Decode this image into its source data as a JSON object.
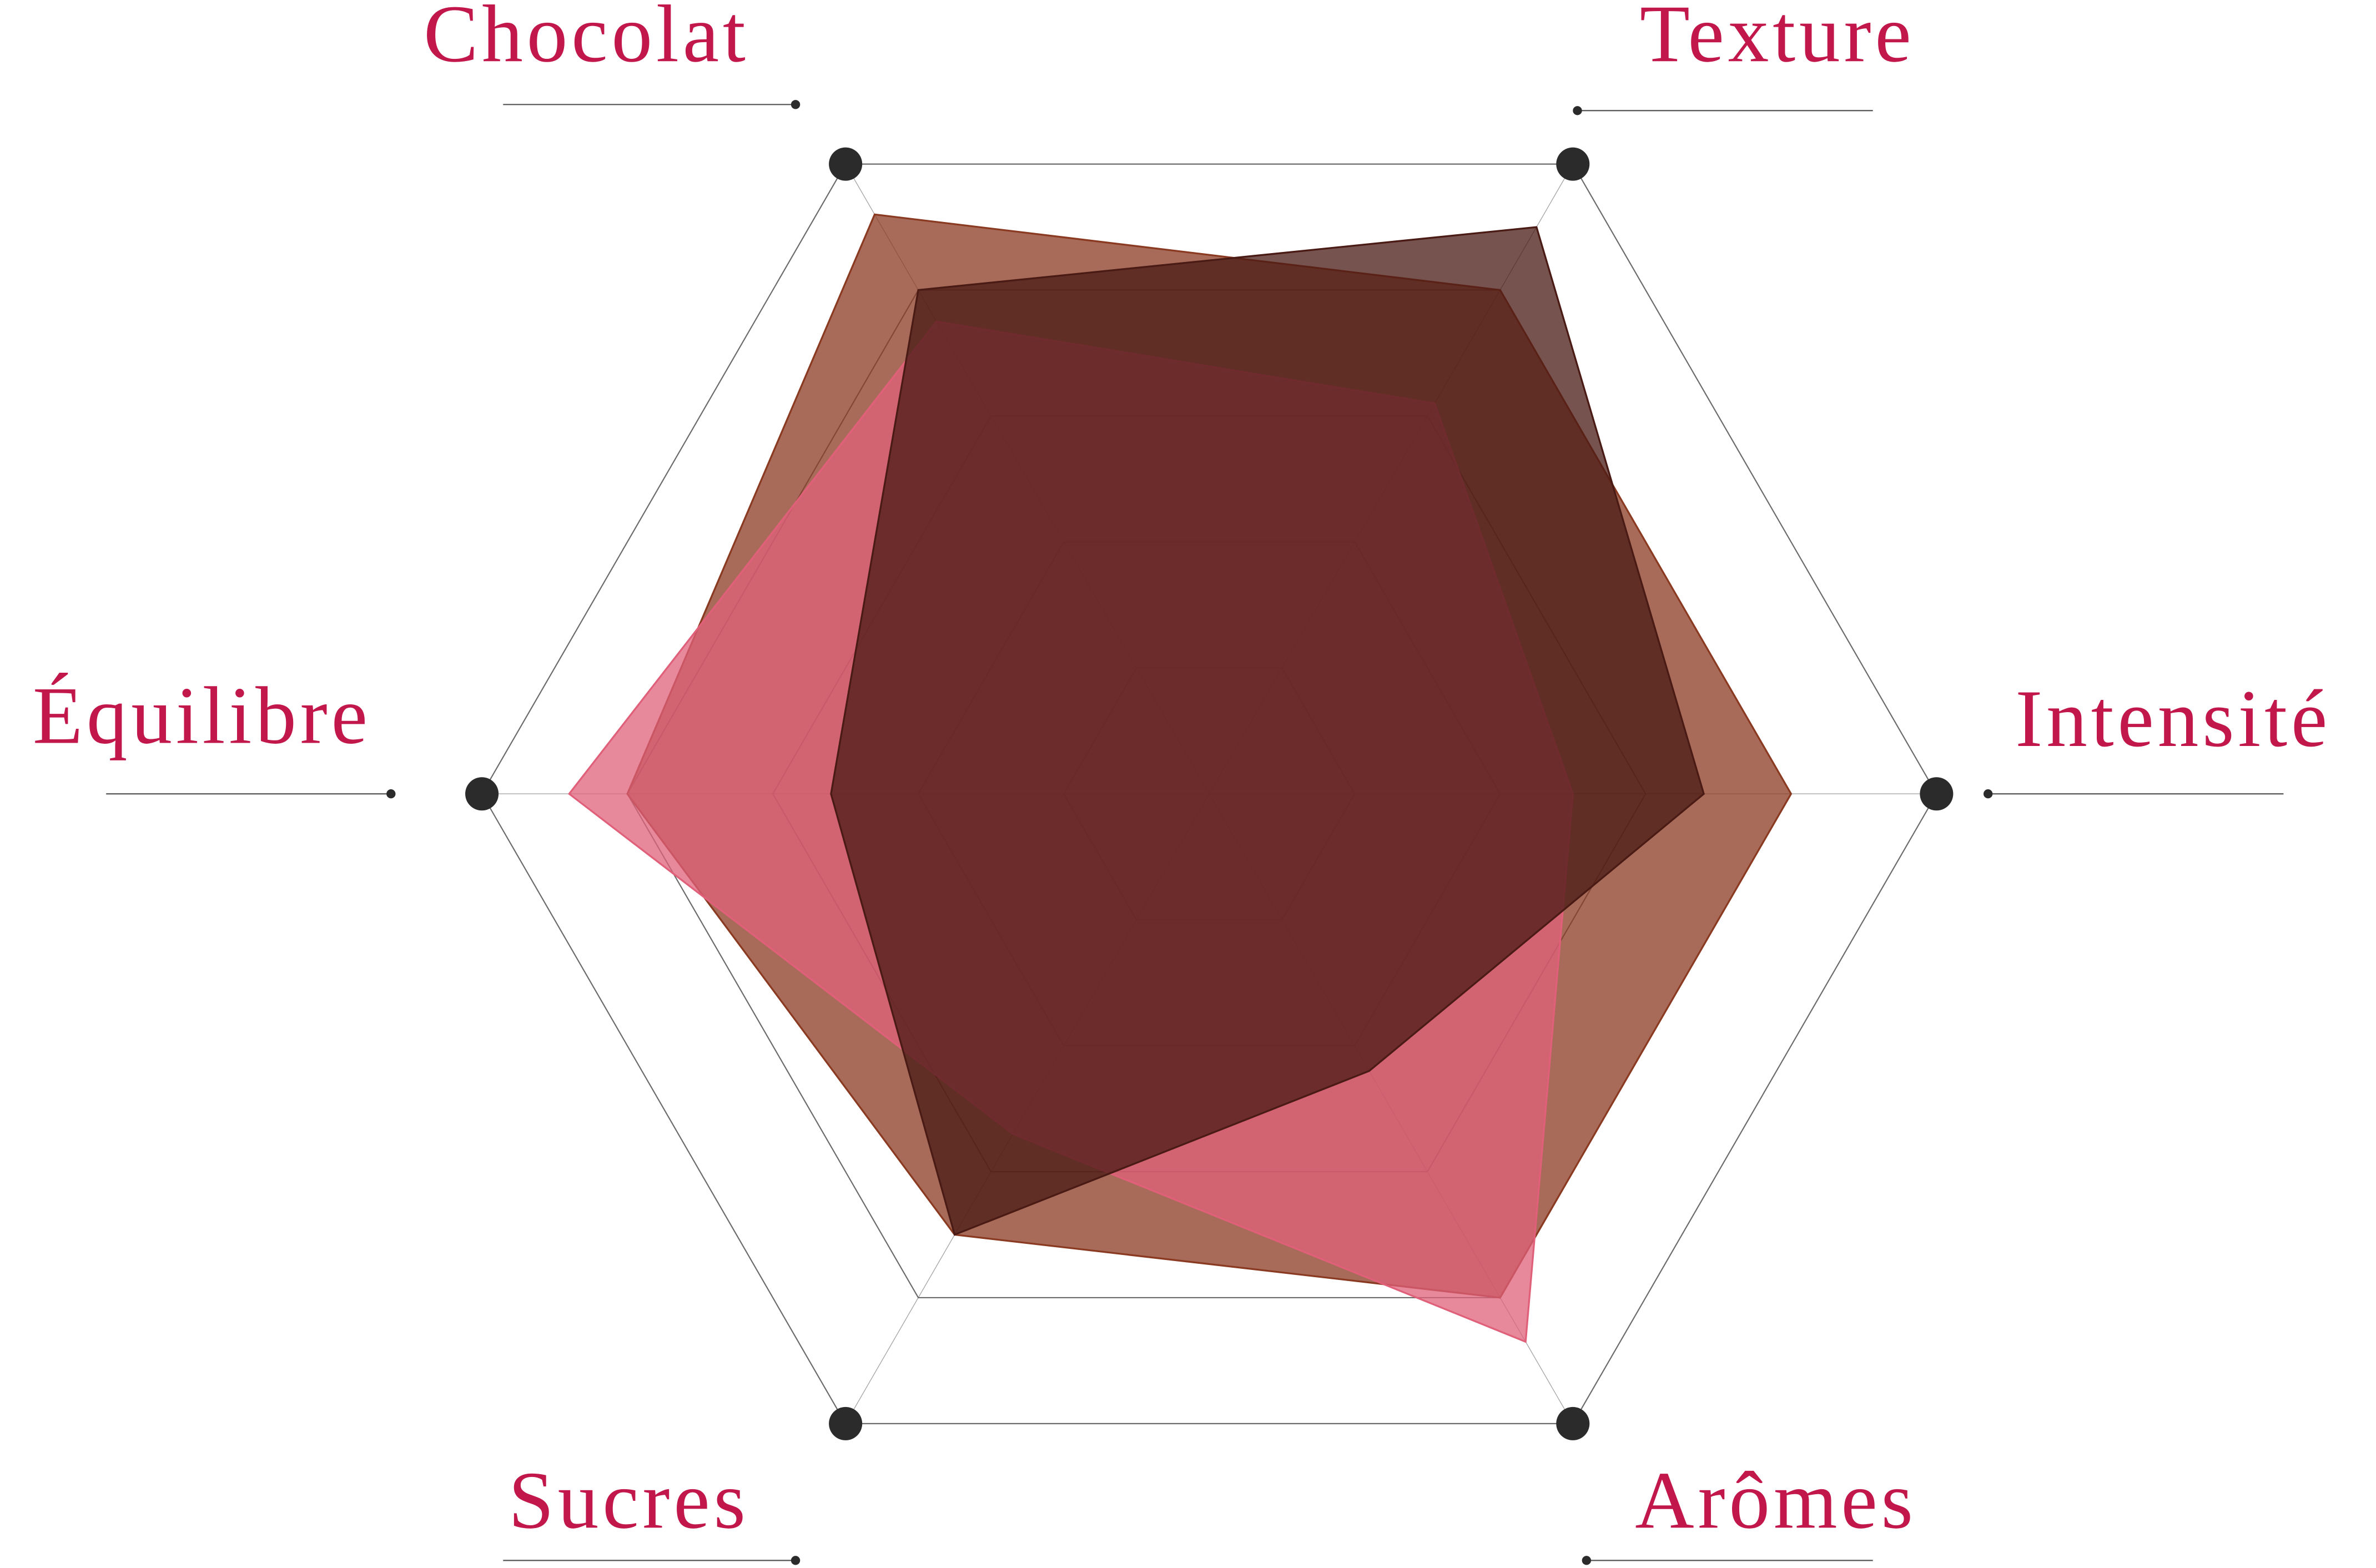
{
  "chart_data": {
    "type": "radar",
    "categories": [
      "Chocolat",
      "Texture",
      "Intensité",
      "Arômes",
      "Sucres",
      "Équilibre"
    ],
    "rlim": [
      0,
      5
    ],
    "rticks": [
      1,
      2,
      3,
      4,
      5
    ],
    "grid": true,
    "series": [
      {
        "color": "#8b3a22",
        "values": [
          4.6,
          4.0,
          4.0,
          4.0,
          3.5,
          4.0
        ]
      },
      {
        "color": "#e0607a",
        "values": [
          3.75,
          3.1,
          2.5,
          4.35,
          2.7,
          4.4
        ]
      },
      {
        "color": "#4a1a14",
        "values": [
          4.0,
          4.5,
          3.4,
          2.2,
          3.5,
          2.6
        ]
      }
    ]
  }
}
